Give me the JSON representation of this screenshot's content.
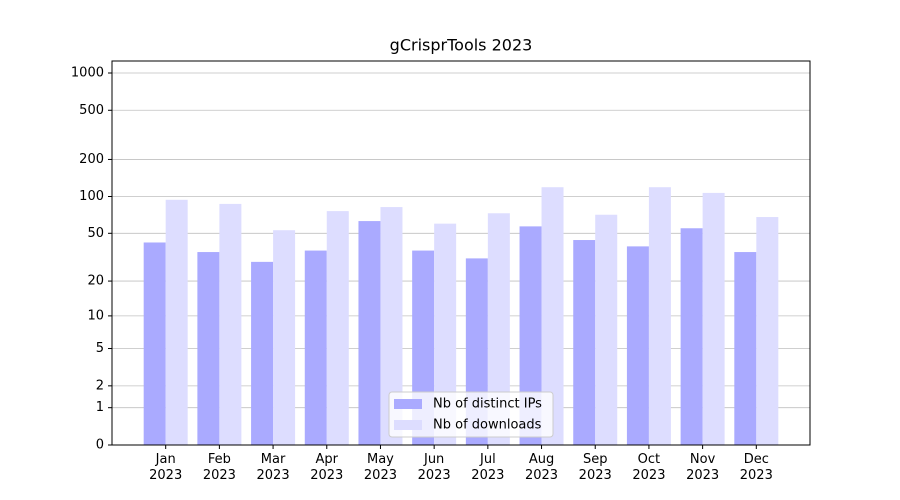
{
  "chart_data": {
    "type": "bar",
    "title": "gCrisprTools 2023",
    "categories": [
      "Jan\n2023",
      "Feb\n2023",
      "Mar\n2023",
      "Apr\n2023",
      "May\n2023",
      "Jun\n2023",
      "Jul\n2023",
      "Aug\n2023",
      "Sep\n2023",
      "Oct\n2023",
      "Nov\n2023",
      "Dec\n2023"
    ],
    "series": [
      {
        "name": "Nb of distinct IPs",
        "color": "#aaaaff",
        "values": [
          42,
          35,
          29,
          36,
          63,
          36,
          31,
          57,
          44,
          39,
          55,
          35
        ]
      },
      {
        "name": "Nb of downloads",
        "color": "#ddddff",
        "values": [
          94,
          87,
          53,
          76,
          82,
          60,
          73,
          119,
          71,
          119,
          107,
          68
        ]
      }
    ],
    "yscale": "log1p",
    "ylim": [
      0,
      1250
    ],
    "yticks": [
      0,
      1,
      2,
      5,
      10,
      20,
      50,
      100,
      200,
      500,
      1000
    ],
    "grid": true,
    "legend": "lower center"
  }
}
